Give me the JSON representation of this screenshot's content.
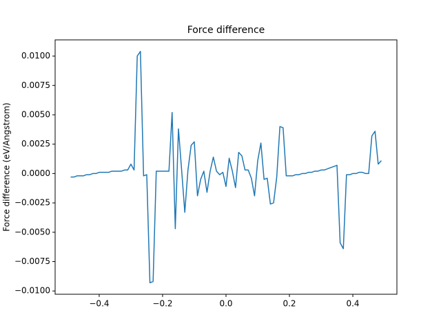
{
  "chart_data": {
    "type": "line",
    "title": "Force difference",
    "y_label": "Force difference (eV/Angstrom)",
    "x": [
      -0.49,
      -0.48,
      -0.47,
      -0.46,
      -0.45,
      -0.44,
      -0.43,
      -0.42,
      -0.41,
      -0.4,
      -0.39,
      -0.38,
      -0.37,
      -0.36,
      -0.35,
      -0.34,
      -0.33,
      -0.32,
      -0.31,
      -0.3,
      -0.29,
      -0.28,
      -0.27,
      -0.26,
      -0.25,
      -0.24,
      -0.23,
      -0.22,
      -0.21,
      -0.2,
      -0.19,
      -0.18,
      -0.17,
      -0.16,
      -0.15,
      -0.14,
      -0.13,
      -0.12,
      -0.11,
      -0.1,
      -0.09,
      -0.08,
      -0.07,
      -0.06,
      -0.05,
      -0.04,
      -0.03,
      -0.02,
      -0.01,
      0.0,
      0.01,
      0.02,
      0.03,
      0.04,
      0.05,
      0.06,
      0.07,
      0.08,
      0.09,
      0.1,
      0.11,
      0.12,
      0.13,
      0.14,
      0.15,
      0.16,
      0.17,
      0.18,
      0.19,
      0.2,
      0.21,
      0.22,
      0.23,
      0.24,
      0.25,
      0.26,
      0.27,
      0.28,
      0.29,
      0.3,
      0.31,
      0.32,
      0.33,
      0.34,
      0.35,
      0.36,
      0.37,
      0.38,
      0.39,
      0.4,
      0.41,
      0.42,
      0.43,
      0.44,
      0.45,
      0.46,
      0.47,
      0.48,
      0.49
    ],
    "series": [
      {
        "color": "#1f77b4",
        "values": [
          -0.0003,
          -0.0003,
          -0.0002,
          -0.0002,
          -0.0002,
          -0.0001,
          -0.0001,
          0,
          0,
          0.0001,
          0.0001,
          0.0001,
          0.0001,
          0.0002,
          0.0002,
          0.0002,
          0.0002,
          0.0003,
          0.0003,
          0.0008,
          0.0003,
          0.01,
          0.0104,
          -0.0002,
          -0.0001,
          -0.0093,
          -0.0092,
          0.0002,
          0.0002,
          0.0002,
          0.0002,
          0.0002,
          0.0052,
          -0.0047,
          0.0038,
          0.0003,
          -0.0033,
          0.0003,
          0.0024,
          0.0027,
          -0.0019,
          -0.0005,
          0.0002,
          -0.0016,
          0.0002,
          0.0014,
          0.0002,
          -0.0001,
          0.0001,
          -0.0011,
          0.0013,
          0.0002,
          -0.0012,
          0.0018,
          0.0015,
          0.0003,
          0.0003,
          -0.0004,
          -0.0019,
          0.0011,
          0.0026,
          -0.0005,
          -0.0004,
          -0.0026,
          -0.0025,
          -0.0003,
          0.004,
          0.0039,
          -0.0002,
          -0.0002,
          -0.0002,
          -0.0001,
          -0.0001,
          0,
          0,
          0.0001,
          0.0001,
          0.0002,
          0.0002,
          0.0003,
          0.0003,
          0.0004,
          0.0005,
          0.0006,
          0.0007,
          -0.0059,
          -0.0064,
          -0.0001,
          -0.0001,
          0,
          0,
          0.0001,
          0.0001,
          0,
          0,
          0.0032,
          0.0036,
          0.0008,
          0.0011
        ]
      }
    ],
    "xlim": [
      -0.539,
      0.539
    ],
    "ylim": [
      -0.01028,
      0.01138
    ],
    "xticks": [
      {
        "value": -0.4,
        "label": "−0.4"
      },
      {
        "value": -0.2,
        "label": "−0.2"
      },
      {
        "value": 0,
        "label": "0.0"
      },
      {
        "value": 0.2,
        "label": "0.2"
      },
      {
        "value": 0.4,
        "label": "0.4"
      }
    ],
    "yticks": [
      {
        "value": -0.01,
        "label": "−0.0100"
      },
      {
        "value": -0.0075,
        "label": "−0.0075"
      },
      {
        "value": -0.005,
        "label": "−0.0050"
      },
      {
        "value": -0.0025,
        "label": "−0.0025"
      },
      {
        "value": 0,
        "label": "0.0000"
      },
      {
        "value": 0.0025,
        "label": "0.0025"
      },
      {
        "value": 0.005,
        "label": "0.0050"
      },
      {
        "value": 0.0075,
        "label": "0.0075"
      },
      {
        "value": 0.01,
        "label": "0.0100"
      }
    ]
  }
}
